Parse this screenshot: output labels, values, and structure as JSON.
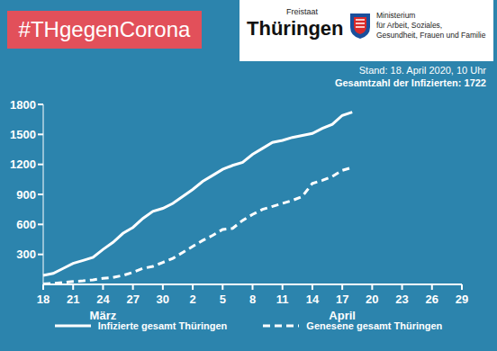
{
  "header": {
    "hashtag": "#THgegenCorona",
    "logo_small": "Freistaat",
    "logo_large": "Thüringen",
    "ministry": [
      "Ministerium",
      "für Arbeit, Soziales,",
      "Gesundheit, Frauen und Familie"
    ]
  },
  "chart_data": {
    "type": "line",
    "subtitle": [
      "Stand: 18. April 2020, 10 Uhr",
      "Gesamtzahl der Infizierten: 1722"
    ],
    "categories": [
      "18",
      null,
      null,
      "21",
      null,
      null,
      "24",
      null,
      null,
      "27",
      null,
      null,
      "30",
      null,
      null,
      "2",
      null,
      null,
      "5",
      null,
      null,
      "8",
      null,
      null,
      "11",
      null,
      null,
      "14",
      null,
      null,
      "17",
      null,
      null,
      "20",
      null,
      null,
      "23",
      null,
      null,
      "26",
      null,
      null,
      "29"
    ],
    "series": [
      {
        "name": "Infizierte gesamt Thüringen",
        "color": "#ffffff",
        "line_style": "solid",
        "values": [
          90,
          110,
          160,
          210,
          240,
          270,
          350,
          420,
          510,
          570,
          660,
          730,
          760,
          810,
          880,
          950,
          1030,
          1090,
          1150,
          1190,
          1220,
          1300,
          1360,
          1420,
          1440,
          1470,
          1490,
          1510,
          1560,
          1600,
          1690,
          1722,
          null,
          null,
          null,
          null,
          null,
          null,
          null,
          null,
          null,
          null,
          null
        ]
      },
      {
        "name": "Genesene gesamt Thüringen",
        "color": "#ffffff",
        "line_style": "dashed",
        "values": [
          5,
          10,
          20,
          30,
          35,
          45,
          60,
          70,
          90,
          120,
          160,
          180,
          220,
          260,
          320,
          380,
          440,
          490,
          550,
          560,
          640,
          700,
          750,
          780,
          810,
          840,
          880,
          1010,
          1040,
          1080,
          1140,
          1170,
          null,
          null,
          null,
          null,
          null,
          null,
          null,
          null,
          null,
          null,
          null
        ]
      }
    ],
    "ylim": [
      0,
      1800
    ],
    "yticks": [
      300,
      600,
      900,
      1200,
      1500,
      1800
    ],
    "grid": false,
    "legend": "bottom",
    "annotations": [
      {
        "text": "März",
        "x": "24"
      },
      {
        "text": "April",
        "x": "17"
      }
    ]
  }
}
